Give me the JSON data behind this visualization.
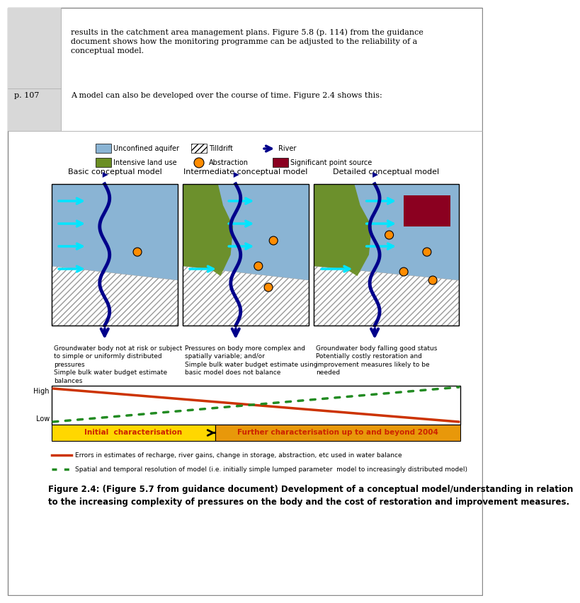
{
  "text_block1": "results in the catchment area management plans. Figure 5.8 (p. 114) from the guidance\ndocument shows how the monitoring programme can be adjusted to the reliability of a\nconceptual model.",
  "page_label": "p. 107",
  "text_block2": "A model can also be developed over the course of time. Figure 2.4 shows this:",
  "panel_titles": [
    "Basic conceptual model",
    "Intermediate conceptual model",
    "Detailed conceptual model"
  ],
  "panel_descriptions": [
    "Groundwater body not at risk or subject\nto simple or uniformly distributed\npressures\nSimple bulk water budget estimate\nbalances",
    "Pressures on body more complex and\nspatially variable; and/or\nSimple bulk water budget estimate using\nbasic model does not balance",
    "Groundwater body falling good status\nPotentially costly restoration and\nimprovement measures likely to be\nneeded"
  ],
  "bar_label1": "Initial  characterisation",
  "bar_label2": "Further characterisation up to and beyond 2004",
  "line1_label": "Errors in estimates of recharge, river gains, change in storage, abstraction, etc used in water balance",
  "line2_label": "Spatial and temporal resolution of model (i.e. initially simple lumped parameter  model to increasingly distributed model)",
  "figure_caption_bold": "Figure 2.4: (Figure 5.7 from guidance document) Development of a conceptual model/understanding in relation\nto the increasing complexity of pressures on the body and the cost of restoration and improvement measures.",
  "bg_color": "#ffffff",
  "aquifer_color": "#8ab4d4",
  "hatch_fg": "#b0b0b0",
  "river_color": "#00008b",
  "landuse_color": "#6b8e23",
  "abstraction_fill": "#ff8c00",
  "point_source_color": "#8b0020",
  "cyan_color": "#00e5ff",
  "orange_line_color": "#cc3300",
  "green_dot_color": "#228b22",
  "bar_left_color": "#ffd700",
  "bar_right_color": "#e8980a",
  "bar_text_color": "#cc2200",
  "sidebar_color": "#d8d8d8",
  "legend_aq_label": "Unconfined aquifer",
  "legend_till_label": "Tilldrift",
  "legend_river_label": "River",
  "legend_land_label": "Intensive land use",
  "legend_abs_label": "Abstraction",
  "legend_sp_label": "Significant point source",
  "graph_high_label": "High",
  "graph_low_label": "Low"
}
